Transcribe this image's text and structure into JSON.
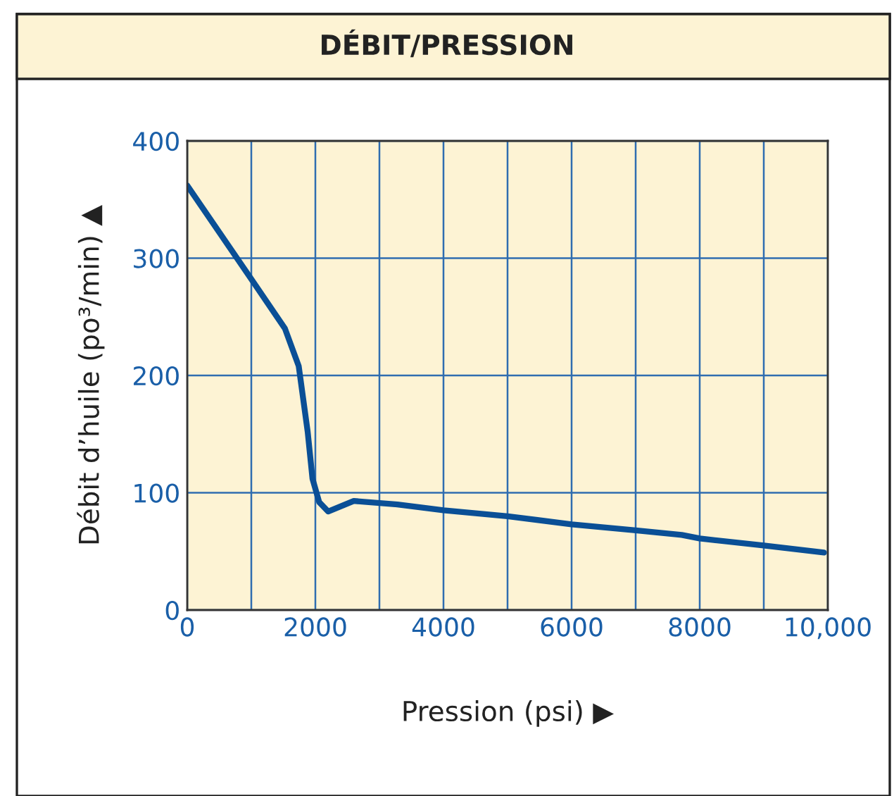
{
  "chart_data": {
    "type": "line",
    "title": "DÉBIT/PRESSION",
    "xlabel": "Pression (psi) ▶",
    "ylabel": "Débit d’huile (po³/min) ▲",
    "series": [
      {
        "color": "#0a4f96",
        "x": [
          0,
          990,
          1525,
          1740,
          1880,
          1955,
          2060,
          2200,
          2600,
          3280,
          4000,
          5000,
          6000,
          7000,
          7720,
          8000,
          9000,
          9940
        ],
        "values": [
          362,
          283,
          240,
          208,
          152,
          112,
          92,
          84,
          93,
          90,
          85,
          80,
          73,
          68,
          64,
          61,
          55,
          49
        ]
      }
    ],
    "xlim": [
      0,
      10000
    ],
    "xticks": [
      0,
      {
        "value": 1000,
        "label": null
      },
      2000,
      {
        "value": 3000,
        "label": null
      },
      4000,
      {
        "value": 5000,
        "label": null
      },
      6000,
      {
        "value": 7000,
        "label": null
      },
      8000,
      {
        "value": 9000,
        "label": null
      },
      {
        "value": 10000,
        "label": "10,000"
      }
    ],
    "ylim": [
      0,
      400
    ],
    "yticks": [
      0,
      100,
      200,
      300,
      400
    ],
    "grid": true,
    "legend": false,
    "marker": "none",
    "line_style": "solid"
  }
}
